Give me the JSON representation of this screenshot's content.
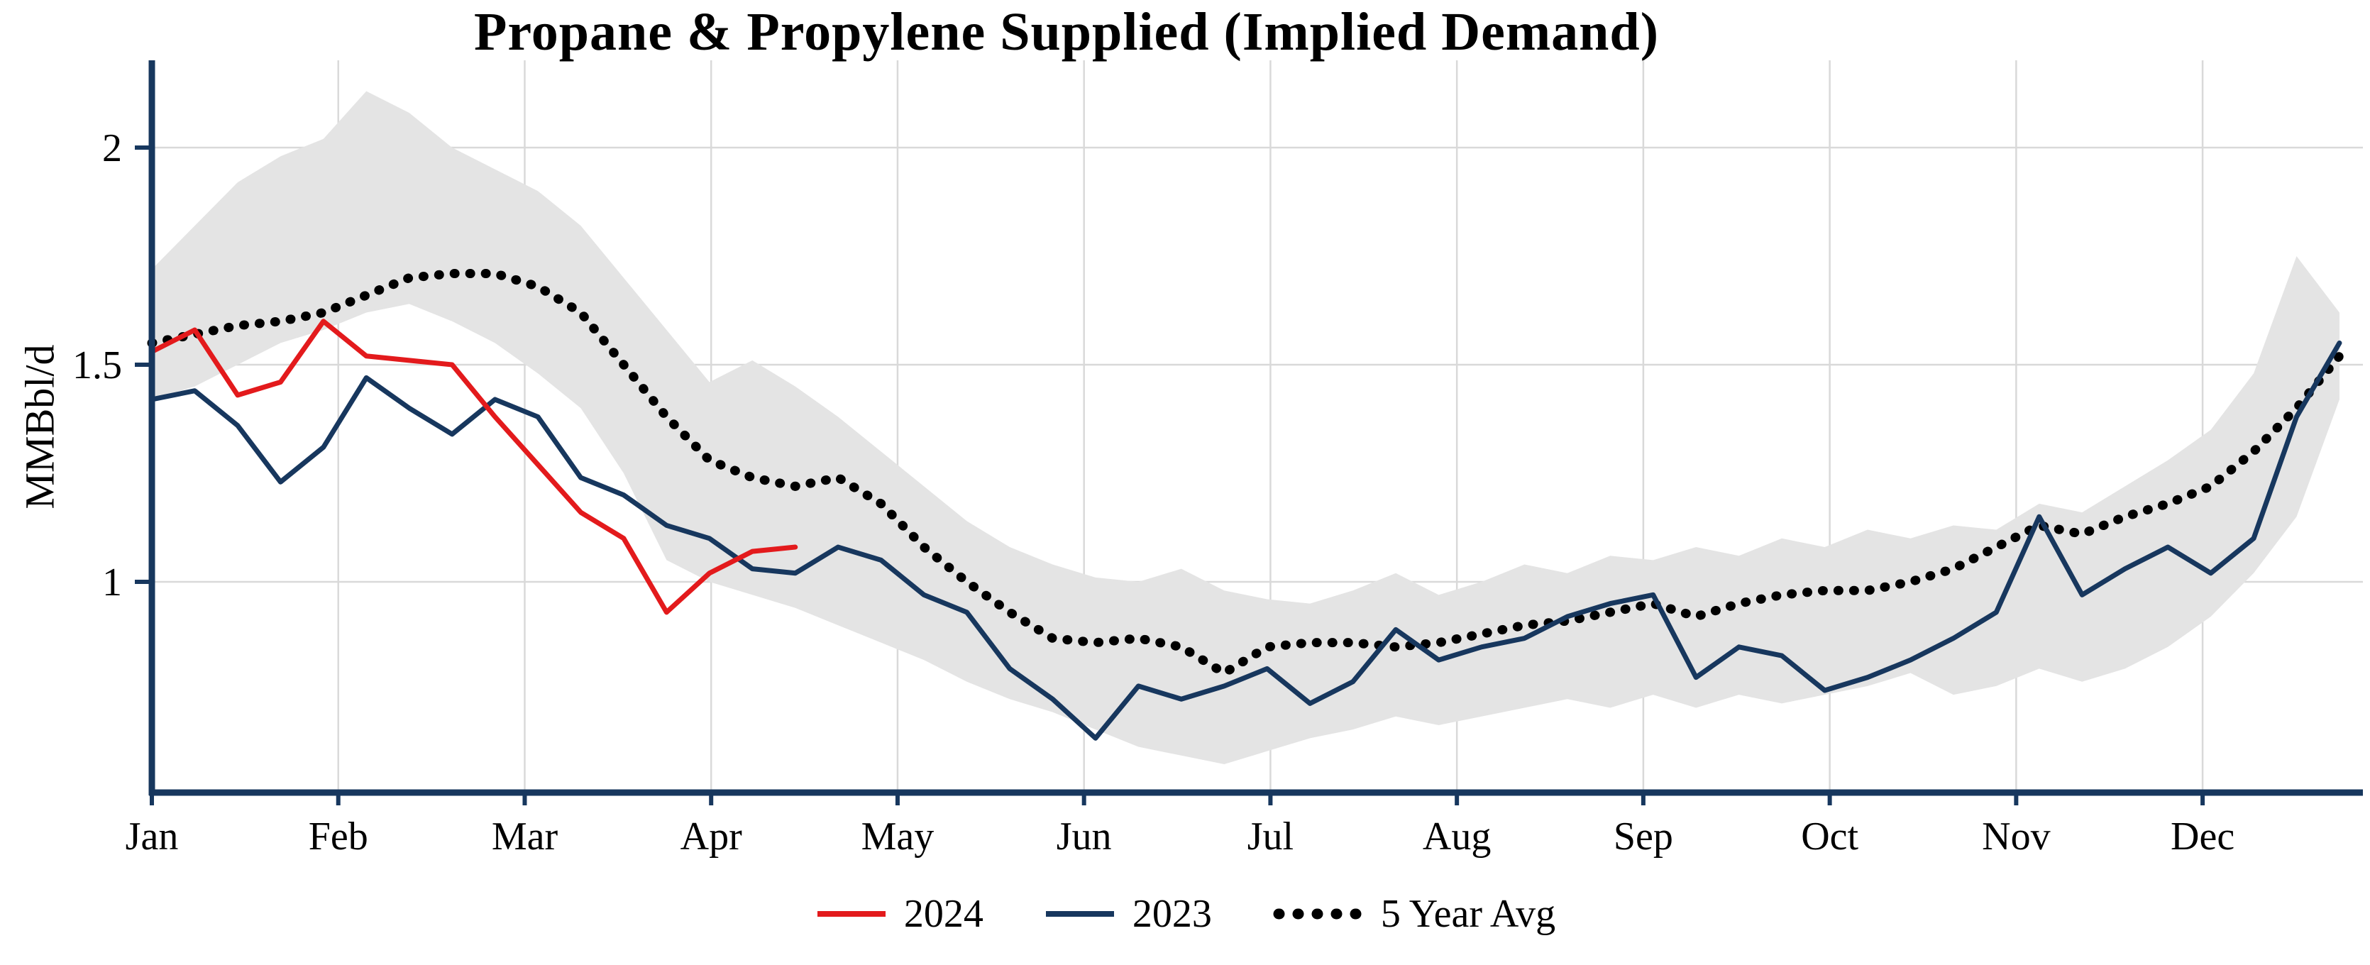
{
  "chart_data": {
    "type": "line",
    "title": "Propane & Propylene Supplied (Implied Demand)",
    "ylabel": "MMBbl/d",
    "xlabel": "",
    "grid": true,
    "legend_position": "bottom-center",
    "x_axis": {
      "tick_labels": [
        "Jan",
        "Feb",
        "Mar",
        "Apr",
        "May",
        "Jun",
        "Jul",
        "Aug",
        "Sep",
        "Oct",
        "Nov",
        "Dec"
      ],
      "resolution": "weekly",
      "weeks_per_year": 52
    },
    "y_axis": {
      "ticks": [
        1,
        1.5,
        2
      ],
      "tick_labels": [
        "1",
        "1.5",
        "2"
      ],
      "range": [
        0.5,
        2.2
      ]
    },
    "colors": {
      "axis": "#17375e",
      "grid": "#d9d9d9",
      "background": "#ffffff"
    },
    "band": {
      "label": "5-year min-max range",
      "color": "#e4e4e4",
      "upper": [
        1.72,
        1.82,
        1.92,
        1.98,
        2.02,
        2.13,
        2.08,
        2.0,
        1.95,
        1.9,
        1.82,
        1.7,
        1.58,
        1.46,
        1.51,
        1.45,
        1.38,
        1.3,
        1.22,
        1.14,
        1.08,
        1.04,
        1.01,
        1.0,
        1.03,
        0.98,
        0.96,
        0.95,
        0.98,
        1.02,
        0.97,
        1.0,
        1.04,
        1.02,
        1.06,
        1.05,
        1.08,
        1.06,
        1.1,
        1.08,
        1.12,
        1.1,
        1.13,
        1.12,
        1.18,
        1.16,
        1.22,
        1.28,
        1.35,
        1.48,
        1.75,
        1.62
      ],
      "lower": [
        1.42,
        1.45,
        1.5,
        1.55,
        1.58,
        1.62,
        1.64,
        1.6,
        1.55,
        1.48,
        1.4,
        1.25,
        1.05,
        1.0,
        0.97,
        0.94,
        0.9,
        0.86,
        0.82,
        0.77,
        0.73,
        0.7,
        0.66,
        0.62,
        0.6,
        0.58,
        0.61,
        0.64,
        0.66,
        0.69,
        0.67,
        0.69,
        0.71,
        0.73,
        0.71,
        0.74,
        0.71,
        0.74,
        0.72,
        0.74,
        0.76,
        0.79,
        0.74,
        0.76,
        0.8,
        0.77,
        0.8,
        0.85,
        0.92,
        1.02,
        1.15,
        1.42
      ]
    },
    "series": [
      {
        "name": "2024",
        "style": "solid",
        "color": "#e31a1c",
        "start_week": 1,
        "values": [
          1.53,
          1.58,
          1.43,
          1.46,
          1.6,
          1.52,
          1.51,
          1.5,
          1.38,
          1.27,
          1.16,
          1.1,
          0.93,
          1.02,
          1.07,
          1.08
        ]
      },
      {
        "name": "2023",
        "style": "solid",
        "color": "#17375e",
        "start_week": 1,
        "values": [
          1.42,
          1.44,
          1.36,
          1.23,
          1.31,
          1.47,
          1.4,
          1.34,
          1.42,
          1.38,
          1.24,
          1.2,
          1.13,
          1.1,
          1.03,
          1.02,
          1.08,
          1.05,
          0.97,
          0.93,
          0.8,
          0.73,
          0.64,
          0.76,
          0.73,
          0.76,
          0.8,
          0.72,
          0.77,
          0.89,
          0.82,
          0.85,
          0.87,
          0.92,
          0.95,
          0.97,
          0.78,
          0.85,
          0.83,
          0.75,
          0.78,
          0.82,
          0.87,
          0.93,
          1.15,
          0.97,
          1.03,
          1.08,
          1.02,
          1.1,
          1.38,
          1.55
        ]
      },
      {
        "name": "5 Year Avg",
        "style": "dotted",
        "color": "#000000",
        "start_week": 1,
        "values": [
          1.55,
          1.57,
          1.59,
          1.6,
          1.62,
          1.66,
          1.7,
          1.71,
          1.71,
          1.68,
          1.62,
          1.5,
          1.38,
          1.28,
          1.24,
          1.22,
          1.24,
          1.18,
          1.08,
          1.0,
          0.93,
          0.87,
          0.86,
          0.87,
          0.85,
          0.79,
          0.85,
          0.86,
          0.86,
          0.85,
          0.86,
          0.88,
          0.9,
          0.91,
          0.93,
          0.95,
          0.92,
          0.95,
          0.97,
          0.98,
          0.98,
          1.0,
          1.03,
          1.08,
          1.13,
          1.11,
          1.15,
          1.18,
          1.22,
          1.3,
          1.4,
          1.52
        ]
      }
    ],
    "legend": [
      "2024",
      "2023",
      "5 Year Avg"
    ]
  }
}
